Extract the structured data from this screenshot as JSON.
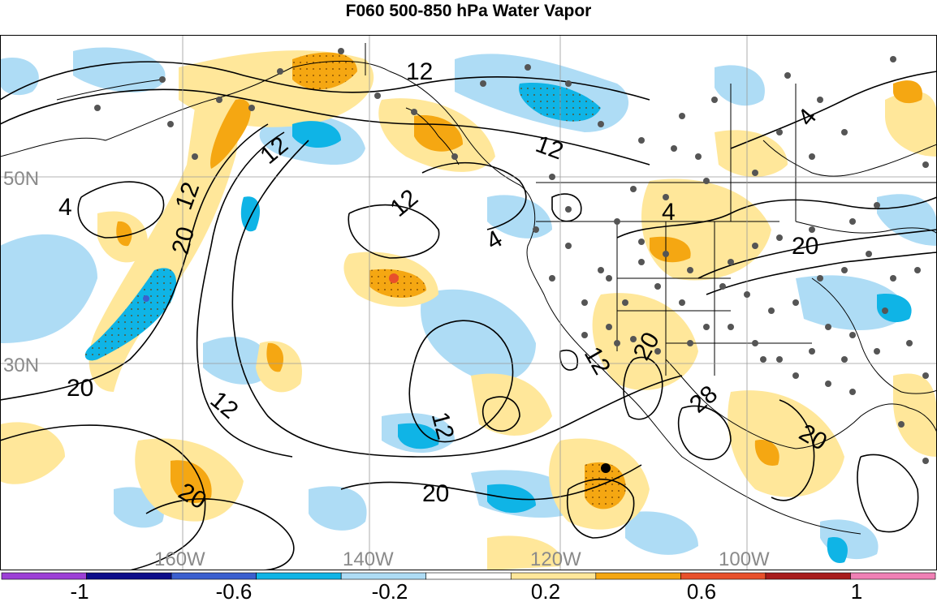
{
  "title": "F060 500-850 hPa Water Vapor",
  "latitude_labels": [
    "50N",
    "30N"
  ],
  "longitude_labels": [
    "160W",
    "140W",
    "120W",
    "100W"
  ],
  "contour_labels": [
    "12",
    "12",
    "12",
    "12",
    "4",
    "4",
    "4",
    "4",
    "20",
    "12",
    "20",
    "20",
    "12",
    "12",
    "20",
    "12",
    "20",
    "28",
    "20",
    "20"
  ],
  "colorbar": {
    "tick_labels": [
      "-1",
      "-0.6",
      "-0.2",
      "0.2",
      "0.6",
      "1"
    ],
    "colors": [
      "#9c3fd6",
      "#0d0d8a",
      "#3b5fcf",
      "#0fb4e6",
      "#aedcf5",
      "#ffffff",
      "#ffe79a",
      "#f5a712",
      "#e8502b",
      "#a81c1c",
      "#f080b5"
    ]
  },
  "fill_colors": {
    "positive_light": "#ffe79a",
    "positive_mid": "#f5a712",
    "positive_strong": "#e8502b",
    "negative_light": "#aedcf5",
    "negative_mid": "#0fb4e6",
    "negative_strong": "#3b5fcf"
  }
}
